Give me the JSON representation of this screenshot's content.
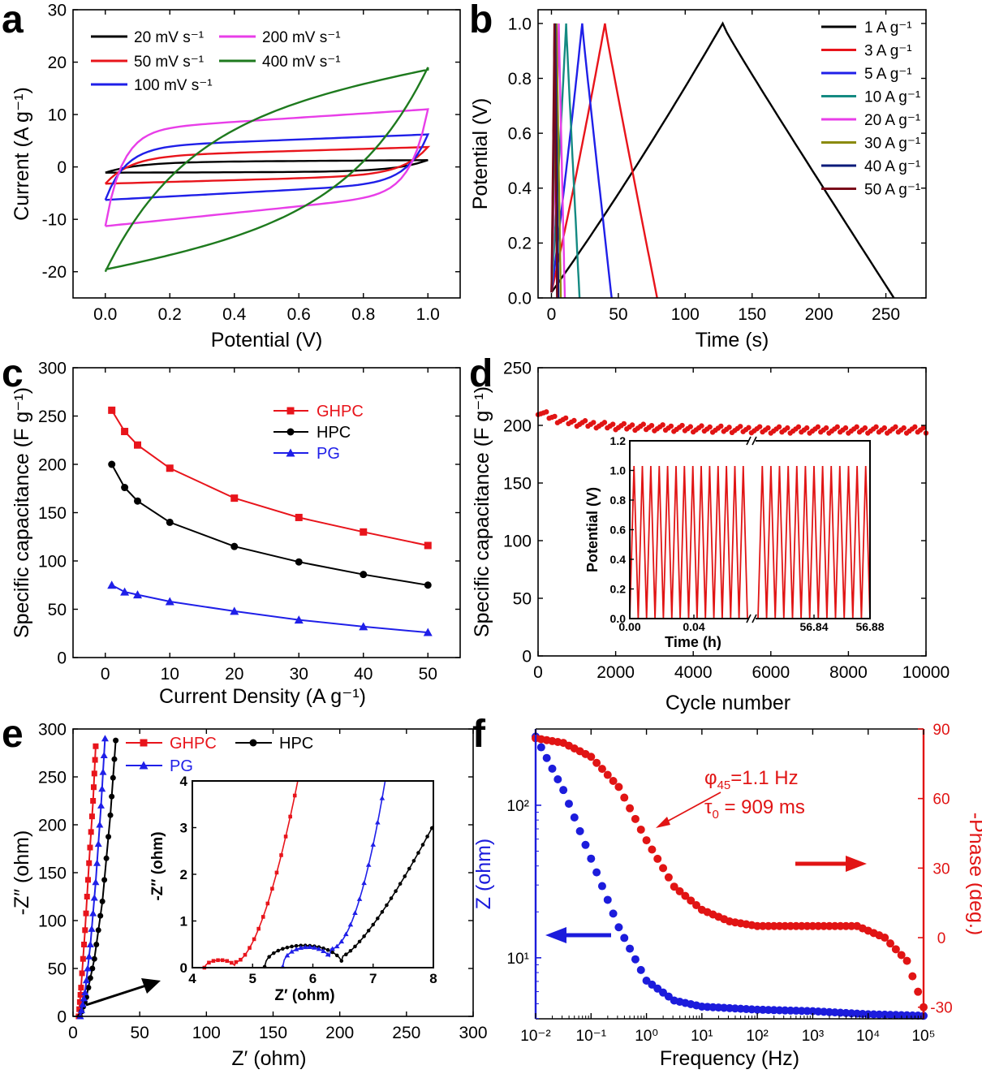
{
  "colors": {
    "black": "#000000",
    "red": "#e8141b",
    "blue": "#1f1fe8",
    "green": "#1e7a1e",
    "magenta": "#e83ee8",
    "teal": "#148a82",
    "olive": "#8a8a0a",
    "navy": "#0a1a7a",
    "maroon": "#7a0a1a",
    "zblue": "#1c1cdc",
    "pred": "#e11414"
  },
  "chart_data": [
    {
      "panel": "a",
      "type": "line",
      "xlabel": "Potential (V)",
      "ylabel": "Current (A g⁻¹)",
      "xlim": [
        -0.1,
        1.1
      ],
      "ylim": [
        -25,
        30
      ],
      "xticks": [
        "0.0",
        "0.2",
        "0.4",
        "0.6",
        "0.8",
        "1.0"
      ],
      "yticks": [
        "-20",
        "-10",
        "0",
        "10",
        "20",
        "30"
      ],
      "legend": [
        "20 mV s⁻¹",
        "50 mV s⁻¹",
        "100 mV s⁻¹",
        "200 mV s⁻¹",
        "400 mV s⁻¹"
      ],
      "series": [
        {
          "name": "20 mV s⁻¹",
          "upper_at_0_1": [
            0.9,
            1.3
          ],
          "lower_at_0_1": [
            -1.1,
            -0.9
          ]
        },
        {
          "name": "50 mV s⁻¹",
          "upper_at_0_1": [
            2.0,
            3.8
          ],
          "lower_at_0_1": [
            -3.2,
            -1.5
          ]
        },
        {
          "name": "100 mV s⁻¹",
          "upper_at_0_1": [
            3.8,
            6.2
          ],
          "lower_at_0_1": [
            -6.3,
            -3.0
          ]
        },
        {
          "name": "200 mV s⁻¹",
          "upper_at_0_1": [
            7.0,
            11.0
          ],
          "lower_at_0_1": [
            -11.3,
            -5.0
          ]
        },
        {
          "name": "400 mV s⁻¹",
          "upper_at_0_1": [
            11.0,
            19.0
          ],
          "lower_at_0_1": [
            -20.0,
            -11.0
          ]
        }
      ]
    },
    {
      "panel": "b",
      "type": "line",
      "xlabel": "Time (s)",
      "ylabel": "Potential (V)",
      "xlim": [
        -10,
        280
      ],
      "ylim": [
        0,
        1.05
      ],
      "xticks": [
        "0",
        "50",
        "100",
        "150",
        "200",
        "250"
      ],
      "yticks": [
        "0.0",
        "0.2",
        "0.4",
        "0.6",
        "0.8",
        "1.0"
      ],
      "legend": [
        "1 A g⁻¹",
        "3 A g⁻¹",
        "5 A g⁻¹",
        "10 A g⁻¹",
        "20 A g⁻¹",
        "30 A g⁻¹",
        "40 A g⁻¹",
        "50 A g⁻¹"
      ],
      "series": [
        {
          "name": "1 A g⁻¹",
          "peak_time": 128,
          "end_time": 256
        },
        {
          "name": "3 A g⁻¹",
          "peak_time": 40,
          "end_time": 79
        },
        {
          "name": "5 A g⁻¹",
          "peak_time": 23,
          "end_time": 45
        },
        {
          "name": "10 A g⁻¹",
          "peak_time": 11,
          "end_time": 21
        },
        {
          "name": "20 A g⁻¹",
          "peak_time": 5.5,
          "end_time": 10
        },
        {
          "name": "30 A g⁻¹",
          "peak_time": 3.8,
          "end_time": 7
        },
        {
          "name": "40 A g⁻¹",
          "peak_time": 2.8,
          "end_time": 5.2
        },
        {
          "name": "50 A g⁻¹",
          "peak_time": 2.2,
          "end_time": 4.2
        }
      ]
    },
    {
      "panel": "c",
      "type": "line",
      "xlabel": "Current Density (A g⁻¹)",
      "ylabel": "Specific capacitance (F g⁻¹)",
      "xlim": [
        -5,
        55
      ],
      "ylim": [
        0,
        300
      ],
      "xticks": [
        "0",
        "10",
        "20",
        "30",
        "40",
        "50"
      ],
      "yticks": [
        "0",
        "50",
        "100",
        "150",
        "200",
        "250",
        "300"
      ],
      "x": [
        1,
        3,
        5,
        10,
        20,
        30,
        40,
        50
      ],
      "series": [
        {
          "name": "GHPC",
          "values": [
            256,
            234,
            220,
            196,
            165,
            145,
            130,
            116
          ]
        },
        {
          "name": "HPC",
          "values": [
            200,
            176,
            162,
            140,
            115,
            99,
            86,
            75
          ]
        },
        {
          "name": "PG",
          "values": [
            75,
            68,
            65,
            58,
            48,
            39,
            32,
            26
          ]
        }
      ]
    },
    {
      "panel": "d",
      "type": "scatter",
      "xlabel": "Cycle number",
      "ylabel": "Specific capacitance (F g⁻¹)",
      "xlim": [
        0,
        10000
      ],
      "ylim": [
        0,
        250
      ],
      "xticks": [
        "0",
        "2000",
        "4000",
        "6000",
        "8000",
        "10000"
      ],
      "yticks": [
        "0",
        "50",
        "100",
        "150",
        "200",
        "250"
      ],
      "trend": {
        "x": [
          0,
          500,
          1000,
          2000,
          4000,
          6000,
          8000,
          10000
        ],
        "y": [
          212,
          205,
          202,
          199,
          197,
          196,
          196,
          196
        ]
      },
      "inset": {
        "xlabel": "Time (h)",
        "ylabel": "Potential (V)",
        "xticks": [
          "0.00",
          "0.04",
          "56.84",
          "56.88"
        ],
        "yticks": [
          "0.0",
          "0.2",
          "0.4",
          "0.6",
          "0.8",
          "1.0",
          "1.2"
        ],
        "peak_potential": 1.03,
        "cycles_left": 14,
        "cycles_right": 13
      }
    },
    {
      "panel": "e",
      "type": "line",
      "xlabel": "Z′ (ohm)",
      "ylabel": "-Z″ (ohm)",
      "xlim": [
        0,
        300
      ],
      "ylim": [
        0,
        300
      ],
      "xticks": [
        "0",
        "50",
        "100",
        "150",
        "200",
        "250",
        "300"
      ],
      "yticks": [
        "0",
        "50",
        "100",
        "150",
        "200",
        "250",
        "300"
      ],
      "series": [
        {
          "name": "GHPC",
          "x": [
            4.2,
            6,
            9,
            12,
            15,
            17
          ],
          "y": [
            0,
            30,
            90,
            160,
            225,
            282
          ]
        },
        {
          "name": "HPC",
          "x": [
            5.2,
            10,
            16,
            22,
            28,
            32
          ],
          "y": [
            0,
            20,
            60,
            120,
            210,
            288
          ]
        },
        {
          "name": "PG",
          "x": [
            5.5,
            9,
            13,
            17,
            21,
            24
          ],
          "y": [
            0,
            25,
            75,
            140,
            220,
            290
          ]
        }
      ],
      "inset": {
        "xlabel": "Z′ (ohm)",
        "ylabel": "-Z″ (ohm)",
        "xlim": [
          4,
          8
        ],
        "ylim": [
          0,
          4
        ],
        "xticks": [
          "4",
          "5",
          "6",
          "7",
          "8"
        ],
        "yticks": [
          "0",
          "1",
          "2",
          "3",
          "4"
        ]
      }
    },
    {
      "panel": "f",
      "type": "scatter",
      "xlabel": "Frequency (Hz)",
      "ylabel_left": "Z (ohm)",
      "ylabel_right": "-Phase (deg.)",
      "xlim_log10": [
        -2,
        5
      ],
      "ylim_left_log10": [
        0.6,
        2.5
      ],
      "ylim_right": [
        -35,
        90
      ],
      "xticks": [
        "10⁻²",
        "10⁻¹",
        "10⁰",
        "10¹",
        "10²",
        "10³",
        "10⁴",
        "10⁵"
      ],
      "yticks_left": [
        "10¹",
        "10²"
      ],
      "yticks_right": [
        "-30",
        "0",
        "30",
        "60",
        "90"
      ],
      "annotation_line1": "φ",
      "annotation_sub1": "45",
      "annotation_rest1": "=1.1 Hz",
      "annotation_line2": "τ",
      "annotation_sub2": "0",
      "annotation_rest2": " = 909 ms",
      "z_series": {
        "name": "Z",
        "log10f": [
          -2,
          -1.5,
          -1,
          -0.5,
          0,
          0.5,
          1,
          2,
          3,
          4,
          5
        ],
        "log10z": [
          2.45,
          2.1,
          1.65,
          1.2,
          0.85,
          0.72,
          0.68,
          0.66,
          0.65,
          0.63,
          0.62
        ]
      },
      "phase_series": {
        "name": "-Phase",
        "log10f": [
          -2,
          -1.5,
          -1,
          -0.5,
          0,
          0.5,
          1,
          1.5,
          2,
          3,
          3.8,
          4.3,
          4.7,
          5
        ],
        "deg": [
          86,
          84,
          78,
          65,
          42,
          22,
          12,
          7,
          5,
          5,
          5,
          0,
          -10,
          -30
        ]
      }
    }
  ],
  "panels": {
    "a": "a",
    "b": "b",
    "c": "c",
    "d": "d",
    "e": "e",
    "f": "f"
  }
}
